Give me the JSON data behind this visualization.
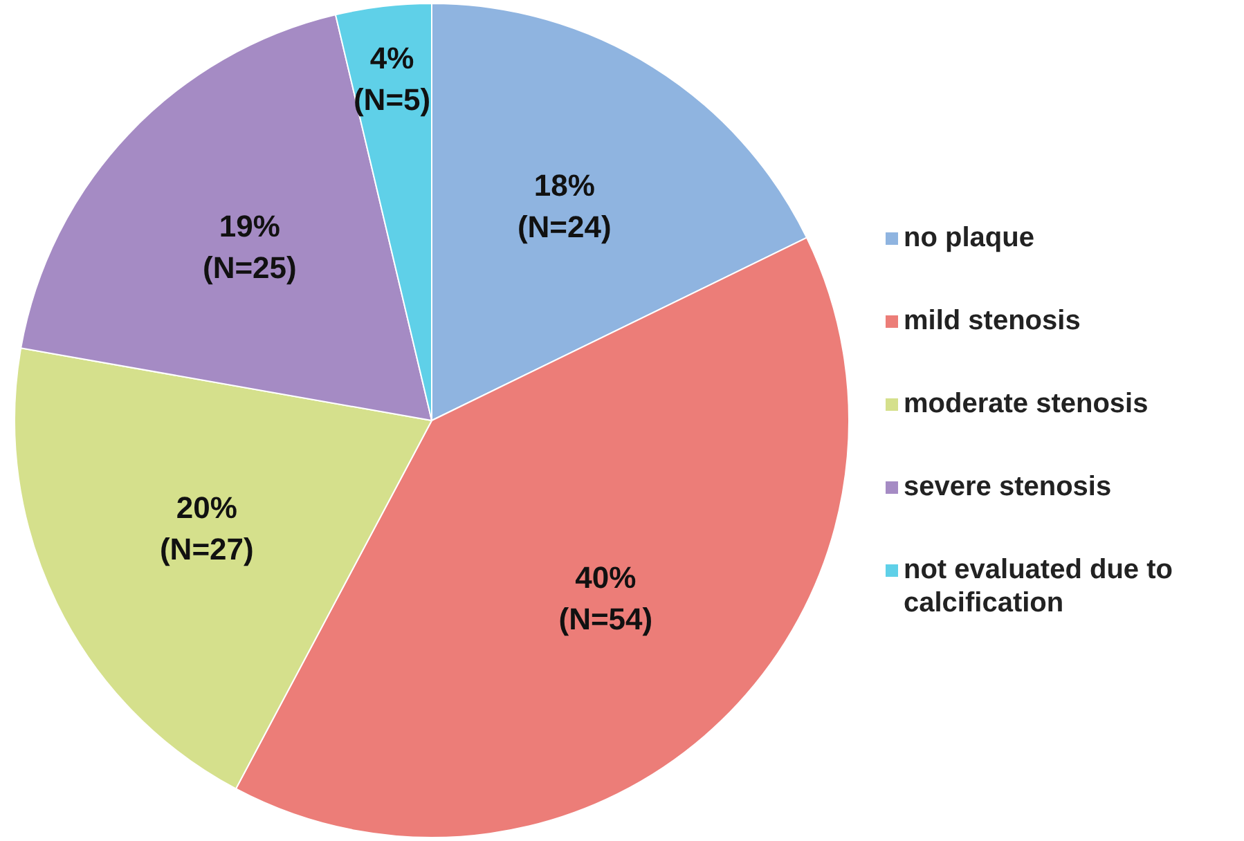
{
  "chart_data": {
    "type": "pie",
    "categories": [
      "no plaque",
      "mild stenosis",
      "moderate stenosis",
      "severe stenosis",
      "not evaluated due to calcification"
    ],
    "values": [
      24,
      54,
      27,
      25,
      5
    ],
    "colors": [
      "#8fb4e0",
      "#ec7d78",
      "#d5e08c",
      "#a58bc4",
      "#5fd0e8"
    ],
    "value_labels": [
      "18%\n(N=24)",
      "40%\n(N=54)",
      "20%\n(N=27)",
      "19%\n(N=25)",
      "4%\n(N=5)"
    ],
    "legend": "right"
  }
}
